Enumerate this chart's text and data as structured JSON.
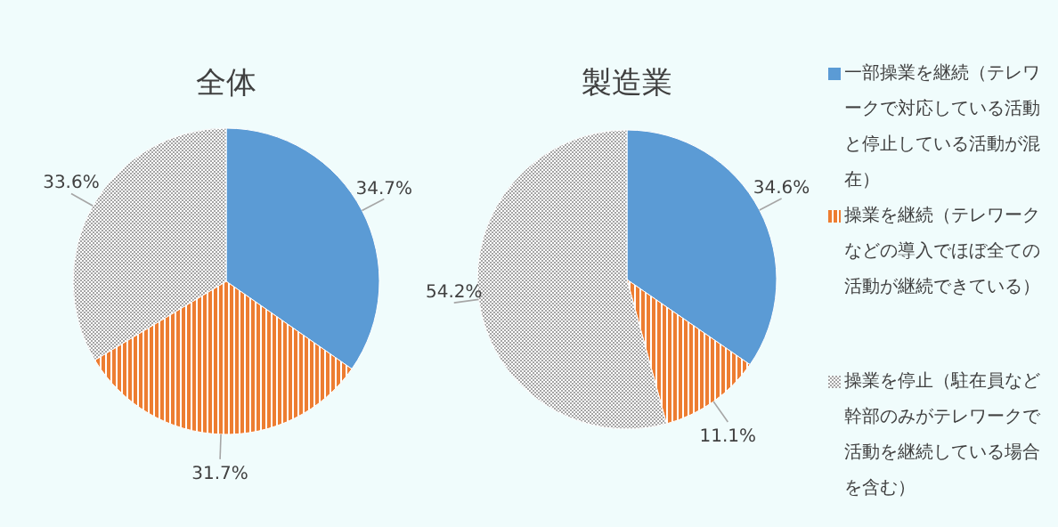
{
  "chart_data": [
    {
      "type": "pie",
      "title": "全体",
      "categories": [
        "一部操業を継続（テレワークで対応している活動と停止している活動が混在）",
        "操業を継続（テレワークなどの導入でほぼ全ての活動が継続できている）",
        "操業を停止（駐在員など幹部のみがテレワークで活動を継続している場合を含む）"
      ],
      "values": [
        34.7,
        31.7,
        33.6
      ],
      "value_labels": [
        "34.7%",
        "31.7%",
        "33.6%"
      ],
      "colors": [
        "#5b9bd5",
        "#ed7d31",
        "#a5a5a5"
      ],
      "legend": "right"
    },
    {
      "type": "pie",
      "title": "製造業",
      "categories": [
        null,
        null,
        null
      ],
      "values": [
        34.6,
        11.1,
        54.2
      ],
      "value_labels": [
        "34.6%",
        "11.1%",
        "54.2%"
      ],
      "colors": [
        "#5b9bd5",
        "#ed7d31",
        "#a5a5a5"
      ],
      "legend": false
    }
  ]
}
